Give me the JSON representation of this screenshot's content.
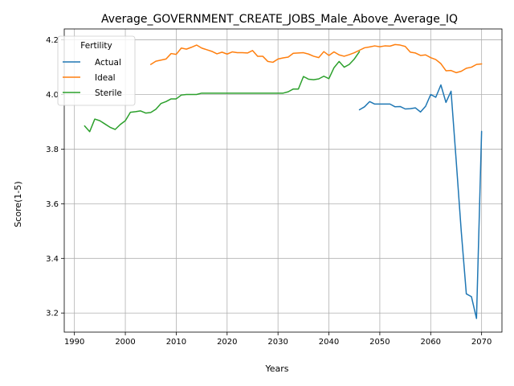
{
  "chart_data": {
    "type": "line",
    "title": "Average_GOVERNMENT_CREATE_JOBS_Male_Above_Average_IQ",
    "xlabel": "Years",
    "ylabel": "Score(1-5)",
    "xlim": [
      1988,
      2074
    ],
    "ylim": [
      3.13,
      4.24
    ],
    "xticks": [
      1990,
      2000,
      2010,
      2020,
      2030,
      2040,
      2050,
      2060,
      2070
    ],
    "yticks": [
      3.2,
      3.4,
      3.6,
      3.8,
      4.0,
      4.2
    ],
    "ytick_labels": [
      "3.2",
      "3.4",
      "3.6",
      "3.8",
      "4.0",
      "4.2"
    ],
    "grid": true,
    "legend": {
      "title": "Fertility",
      "placement": "top-left"
    },
    "series": [
      {
        "name": "Actual",
        "color": "#1f77b4",
        "x": [
          2046,
          2047,
          2048,
          2049,
          2050,
          2051,
          2052,
          2053,
          2054,
          2055,
          2056,
          2057,
          2058,
          2059,
          2060,
          2061,
          2062,
          2063,
          2064,
          2065,
          2066,
          2067,
          2068,
          2069,
          2070
        ],
        "y": [
          3.944,
          3.955,
          3.974,
          3.965,
          3.965,
          3.965,
          3.965,
          3.955,
          3.956,
          3.947,
          3.948,
          3.951,
          3.936,
          3.957,
          4.0,
          3.99,
          4.035,
          3.971,
          4.012,
          3.76,
          3.5,
          3.27,
          3.26,
          3.18,
          3.865
        ]
      },
      {
        "name": "Ideal",
        "color": "#ff7f0e",
        "x": [
          2005,
          2006,
          2007,
          2008,
          2009,
          2010,
          2011,
          2012,
          2013,
          2014,
          2015,
          2016,
          2017,
          2018,
          2019,
          2020,
          2021,
          2022,
          2023,
          2024,
          2025,
          2026,
          2027,
          2028,
          2029,
          2030,
          2031,
          2032,
          2033,
          2034,
          2035,
          2036,
          2037,
          2038,
          2039,
          2040,
          2041,
          2042,
          2043,
          2044,
          2045,
          2046,
          2047,
          2048,
          2049,
          2050,
          2051,
          2052,
          2053,
          2054,
          2055,
          2056,
          2057,
          2058,
          2059,
          2060,
          2061,
          2062,
          2063,
          2064,
          2065,
          2066,
          2067,
          2068,
          2069,
          2070
        ],
        "y": [
          4.11,
          4.122,
          4.126,
          4.13,
          4.15,
          4.147,
          4.17,
          4.166,
          4.173,
          4.181,
          4.17,
          4.164,
          4.158,
          4.149,
          4.155,
          4.148,
          4.156,
          4.153,
          4.153,
          4.152,
          4.161,
          4.14,
          4.14,
          4.121,
          4.118,
          4.13,
          4.134,
          4.137,
          4.151,
          4.152,
          4.153,
          4.148,
          4.14,
          4.135,
          4.157,
          4.143,
          4.156,
          4.145,
          4.14,
          4.146,
          4.153,
          4.162,
          4.171,
          4.174,
          4.178,
          4.175,
          4.178,
          4.177,
          4.183,
          4.181,
          4.176,
          4.155,
          4.152,
          4.143,
          4.145,
          4.135,
          4.128,
          4.113,
          4.087,
          4.088,
          4.08,
          4.085,
          4.096,
          4.1,
          4.11,
          4.112
        ]
      },
      {
        "name": "Sterile",
        "color": "#2ca02c",
        "x": [
          1992,
          1993,
          1994,
          1995,
          1996,
          1997,
          1998,
          1999,
          2000,
          2001,
          2002,
          2003,
          2004,
          2005,
          2006,
          2007,
          2008,
          2009,
          2010,
          2011,
          2012,
          2013,
          2014,
          2015,
          2016,
          2017,
          2018,
          2019,
          2020,
          2021,
          2022,
          2023,
          2024,
          2025,
          2026,
          2027,
          2028,
          2029,
          2030,
          2031,
          2032,
          2033,
          2034,
          2035,
          2036,
          2037,
          2038,
          2039,
          2040,
          2041,
          2042,
          2043,
          2044,
          2045,
          2046
        ],
        "y": [
          3.885,
          3.864,
          3.91,
          3.904,
          3.892,
          3.88,
          3.872,
          3.89,
          3.904,
          3.935,
          3.937,
          3.94,
          3.932,
          3.934,
          3.946,
          3.967,
          3.974,
          3.984,
          3.984,
          3.998,
          4.0,
          4.0,
          4.0,
          4.005,
          4.005,
          4.005,
          4.005,
          4.005,
          4.005,
          4.005,
          4.005,
          4.005,
          4.005,
          4.005,
          4.005,
          4.005,
          4.005,
          4.005,
          4.005,
          4.005,
          4.01,
          4.02,
          4.02,
          4.066,
          4.056,
          4.054,
          4.057,
          4.067,
          4.058,
          4.098,
          4.121,
          4.1,
          4.11,
          4.13,
          4.157
        ]
      }
    ]
  }
}
